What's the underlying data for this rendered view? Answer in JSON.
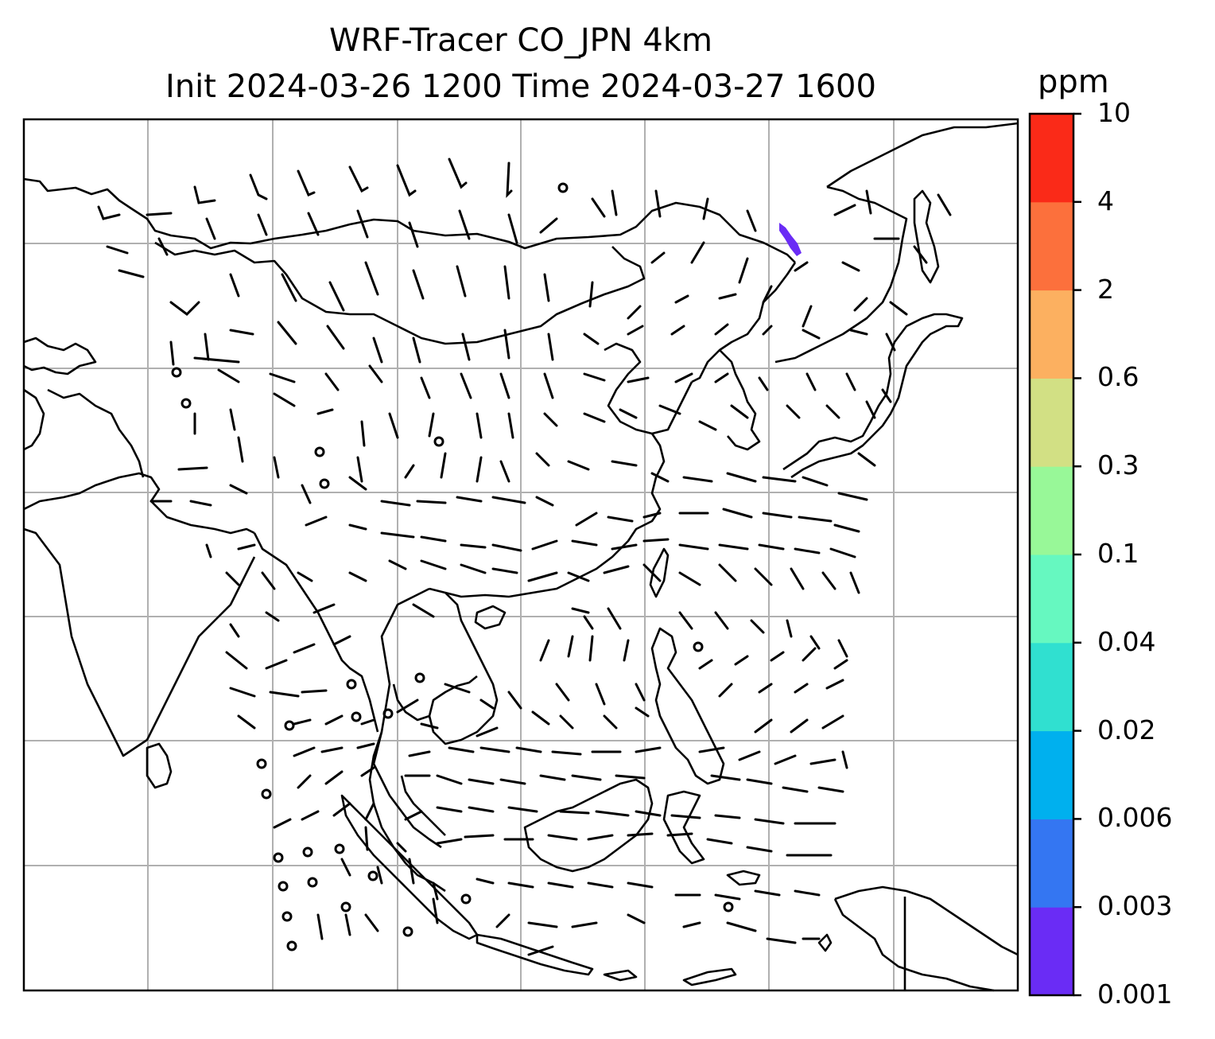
{
  "title_line1": "WRF-Tracer CO_JPN 4km",
  "title_line2": "Init 2024-03-26 1200 Time 2024-03-27 1600",
  "colorbar": {
    "unit": "ppm",
    "levels": [
      "0.001",
      "0.003",
      "0.006",
      "0.02",
      "0.04",
      "0.1",
      "0.3",
      "0.6",
      "2",
      "4",
      "10"
    ],
    "colors": [
      "#6a2cf5",
      "#3476f2",
      "#00b0ee",
      "#30e0d0",
      "#66f8c0",
      "#98f898",
      "#d2e084",
      "#fcb060",
      "#fc703c",
      "#fa2a18"
    ]
  },
  "map": {
    "projection": "plate carree",
    "grid": true,
    "features": [
      "coastlines",
      "country-borders",
      "wind-barbs"
    ],
    "plume_color": "#6a2cf5"
  }
}
